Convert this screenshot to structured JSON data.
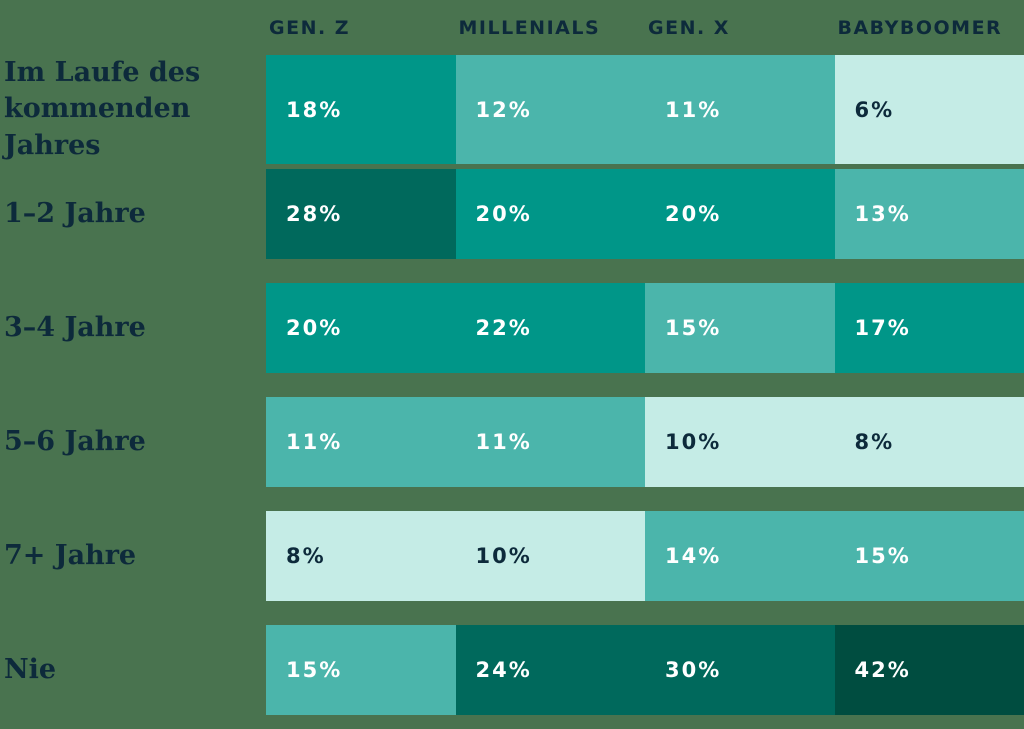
{
  "chart_data": {
    "type": "heatmap",
    "columns": [
      "GEN. Z",
      "MILLENIALS",
      "GEN. X",
      "BABYBOOMER"
    ],
    "rows": [
      {
        "label": "Im Laufe des kommenden Jahres",
        "values": [
          18,
          12,
          11,
          6
        ]
      },
      {
        "label": "1–2 Jahre",
        "values": [
          28,
          20,
          20,
          13
        ]
      },
      {
        "label": "3–4 Jahre",
        "values": [
          20,
          22,
          15,
          17
        ]
      },
      {
        "label": "5–6 Jahre",
        "values": [
          11,
          11,
          10,
          8
        ]
      },
      {
        "label": "7+ Jahre",
        "values": [
          8,
          10,
          14,
          15
        ]
      },
      {
        "label": "Nie",
        "values": [
          15,
          24,
          30,
          42
        ]
      }
    ],
    "value_format": "percent",
    "value_suffix": "%",
    "legend_position": "none",
    "grid": false
  },
  "colors": {
    "background": "#49734F",
    "heading_text": "#0D2A3B",
    "cell_text_on_dark": "#FFFFFF",
    "cell_text_on_light": "#0D2A3B",
    "scale": {
      "lte10": "#C5ECE6",
      "lte15": "#4BB5AB",
      "lte22": "#009688",
      "lte30": "#00695C",
      "gt30": "#004D40"
    },
    "dark_text_threshold": 10
  }
}
